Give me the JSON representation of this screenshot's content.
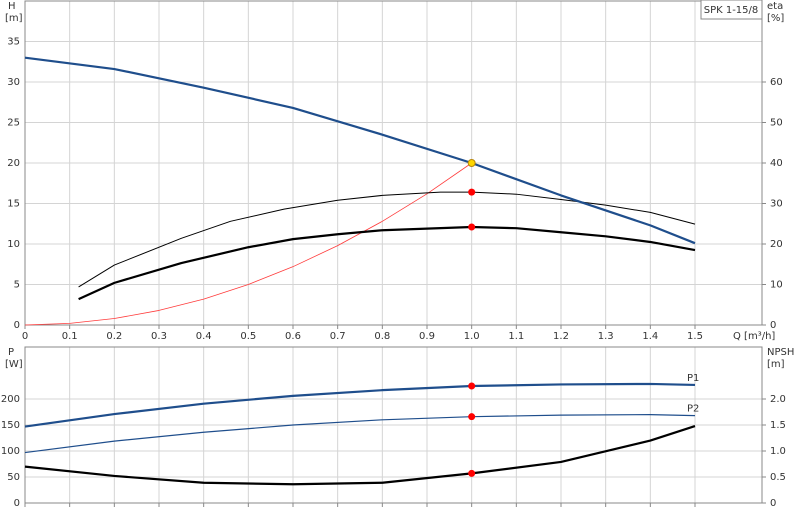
{
  "chart_data": [
    {
      "type": "line",
      "title": "SPK 1-15/8",
      "xlabel": "Q [m³/h]",
      "ylabel": "H",
      "ylabel_unit": "[m]",
      "y2label": "eta",
      "y2label_unit": "[%]",
      "xlim": [
        0,
        1.65
      ],
      "ylim": [
        0,
        40
      ],
      "y2lim": [
        0,
        80
      ],
      "xticks": [
        0,
        0.1,
        0.2,
        0.3,
        0.4,
        0.5,
        0.6,
        0.7,
        0.8,
        0.9,
        {
          "value": 1,
          "label": "1.0"
        },
        1.1,
        1.2,
        1.3,
        1.4,
        1.5
      ],
      "yticks": [
        0,
        5,
        10,
        15,
        20,
        25,
        30,
        35
      ],
      "y2ticks": [
        0,
        10,
        20,
        30,
        40,
        50,
        60
      ],
      "grid": true,
      "series": [
        {
          "color": "#ff3b3b",
          "width": 0.8,
          "axis": "y",
          "x": [
            0,
            0.1,
            0.2,
            0.3,
            0.4,
            0.5,
            0.6,
            0.7,
            0.8,
            0.9,
            1.0
          ],
          "values": [
            0,
            0.2,
            0.8,
            1.8,
            3.2,
            5,
            7.2,
            9.8,
            12.8,
            16.2,
            20
          ]
        },
        {
          "color": "#000000",
          "width": 1,
          "axis": "y2",
          "x": [
            0.12,
            0.2,
            0.35,
            0.46,
            0.58,
            0.7,
            0.8,
            0.93,
            1.0,
            1.1,
            1.2,
            1.3,
            1.4,
            1.5
          ],
          "values": [
            9.4,
            14.8,
            21.4,
            25.6,
            28.6,
            30.8,
            32,
            32.8,
            32.8,
            32.3,
            31,
            29.6,
            27.8,
            24.9
          ],
          "marker_index": 8,
          "marker_color": "#ff0000"
        },
        {
          "color": "#000000",
          "width": 2.2,
          "axis": "y2",
          "x": [
            0.12,
            0.2,
            0.35,
            0.5,
            0.6,
            0.7,
            0.8,
            1.0,
            1.1,
            1.2,
            1.3,
            1.4,
            1.5
          ],
          "values": [
            6.4,
            10.4,
            15.3,
            19.2,
            21.2,
            22.4,
            23.4,
            24.2,
            23.9,
            22.9,
            21.9,
            20.5,
            18.5
          ],
          "marker_index": 7,
          "marker_color": "#ff0000"
        },
        {
          "color": "#1f4e8c",
          "width": 2.2,
          "axis": "y",
          "x": [
            0,
            0.2,
            0.4,
            0.6,
            0.8,
            1.0,
            1.2,
            1.4,
            1.5
          ],
          "values": [
            33.0,
            31.6,
            29.3,
            26.8,
            23.5,
            20.0,
            16.0,
            12.3,
            10.1
          ],
          "marker_index": 5,
          "marker_color": "#ffd700"
        }
      ]
    },
    {
      "type": "line",
      "ylabel": "P",
      "ylabel_unit": "[W]",
      "y2label": "NPSH",
      "y2label_unit": "[m]",
      "xlim": [
        0,
        1.65
      ],
      "ylim": [
        0,
        300
      ],
      "y2lim": [
        0,
        3
      ],
      "xticks": [
        0,
        0.1,
        0.2,
        0.3,
        0.4,
        0.5,
        0.6,
        0.7,
        0.8,
        0.9,
        1.0,
        1.1,
        1.2,
        1.3,
        1.4,
        1.5
      ],
      "xtick_labels": false,
      "yticks": [
        0,
        50,
        100,
        150,
        200
      ],
      "y2ticks": [
        0,
        0.5,
        {
          "value": 1,
          "label": "1.0"
        },
        1.5,
        {
          "value": 2,
          "label": "2.0"
        }
      ],
      "grid": true,
      "series": [
        {
          "name": "P1",
          "color": "#1f4e8c",
          "width": 2.2,
          "axis": "y",
          "x": [
            0,
            0.2,
            0.4,
            0.6,
            0.8,
            1.0,
            1.2,
            1.4,
            1.5
          ],
          "values": [
            147,
            171,
            191,
            206,
            217,
            225,
            228,
            229,
            227
          ],
          "marker_index": 5,
          "marker_color": "#ff0000"
        },
        {
          "name": "P2",
          "color": "#1f4e8c",
          "width": 1.2,
          "axis": "y",
          "x": [
            0,
            0.2,
            0.4,
            0.6,
            0.8,
            1.0,
            1.2,
            1.4,
            1.5
          ],
          "values": [
            97,
            119,
            136,
            150,
            160,
            166,
            169,
            170,
            168
          ],
          "marker_index": 5,
          "marker_color": "#ff0000"
        },
        {
          "color": "#000000",
          "width": 2.2,
          "axis": "y2",
          "x": [
            0,
            0.2,
            0.4,
            0.6,
            0.8,
            1.0,
            1.2,
            1.4,
            1.5
          ],
          "values": [
            0.7,
            0.52,
            0.39,
            0.36,
            0.39,
            0.57,
            0.79,
            1.2,
            1.48
          ],
          "marker_index": 5,
          "marker_color": "#ff0000"
        }
      ]
    }
  ]
}
